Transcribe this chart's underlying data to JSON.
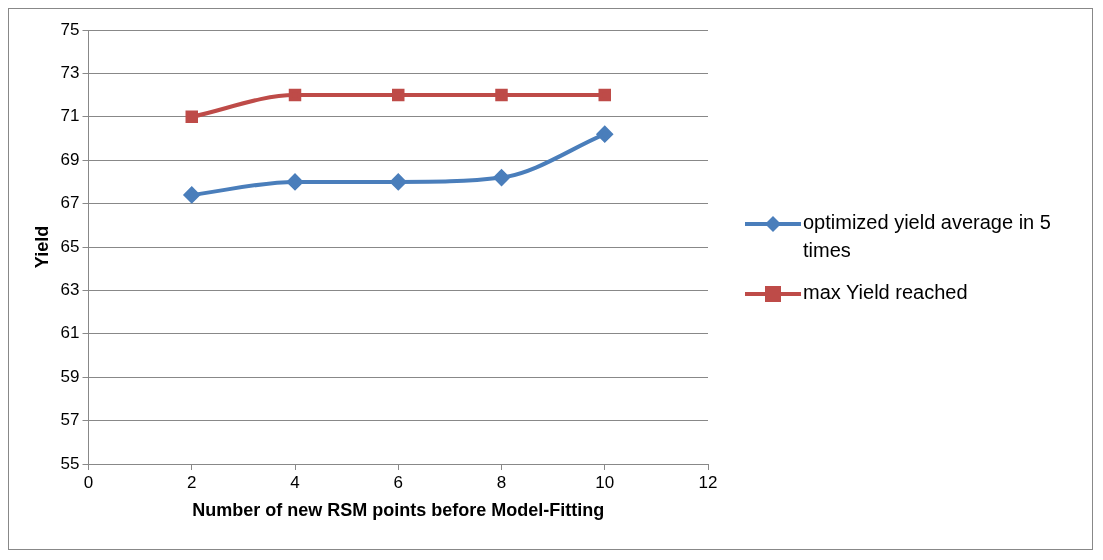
{
  "chart_data": {
    "type": "line",
    "xlabel": "Number of new RSM points before Model-Fitting",
    "ylabel": "Yield",
    "x": [
      2,
      4,
      6,
      8,
      10
    ],
    "series": [
      {
        "name": "optimized yield average in 5 times",
        "color": "#4a7ebb",
        "marker": "diamond",
        "values": [
          67.4,
          68.0,
          68.0,
          68.2,
          70.2
        ]
      },
      {
        "name": "max Yield reached",
        "color": "#be4b48",
        "marker": "square",
        "values": [
          71.0,
          72.0,
          72.0,
          72.0,
          72.0
        ]
      }
    ],
    "xlim": [
      0,
      12
    ],
    "xticks": [
      0,
      2,
      4,
      6,
      8,
      10,
      12
    ],
    "ylim": [
      55,
      75
    ],
    "yticks": [
      55,
      57,
      59,
      61,
      63,
      65,
      67,
      69,
      71,
      73,
      75
    ],
    "grid": "y",
    "legend": "right"
  }
}
